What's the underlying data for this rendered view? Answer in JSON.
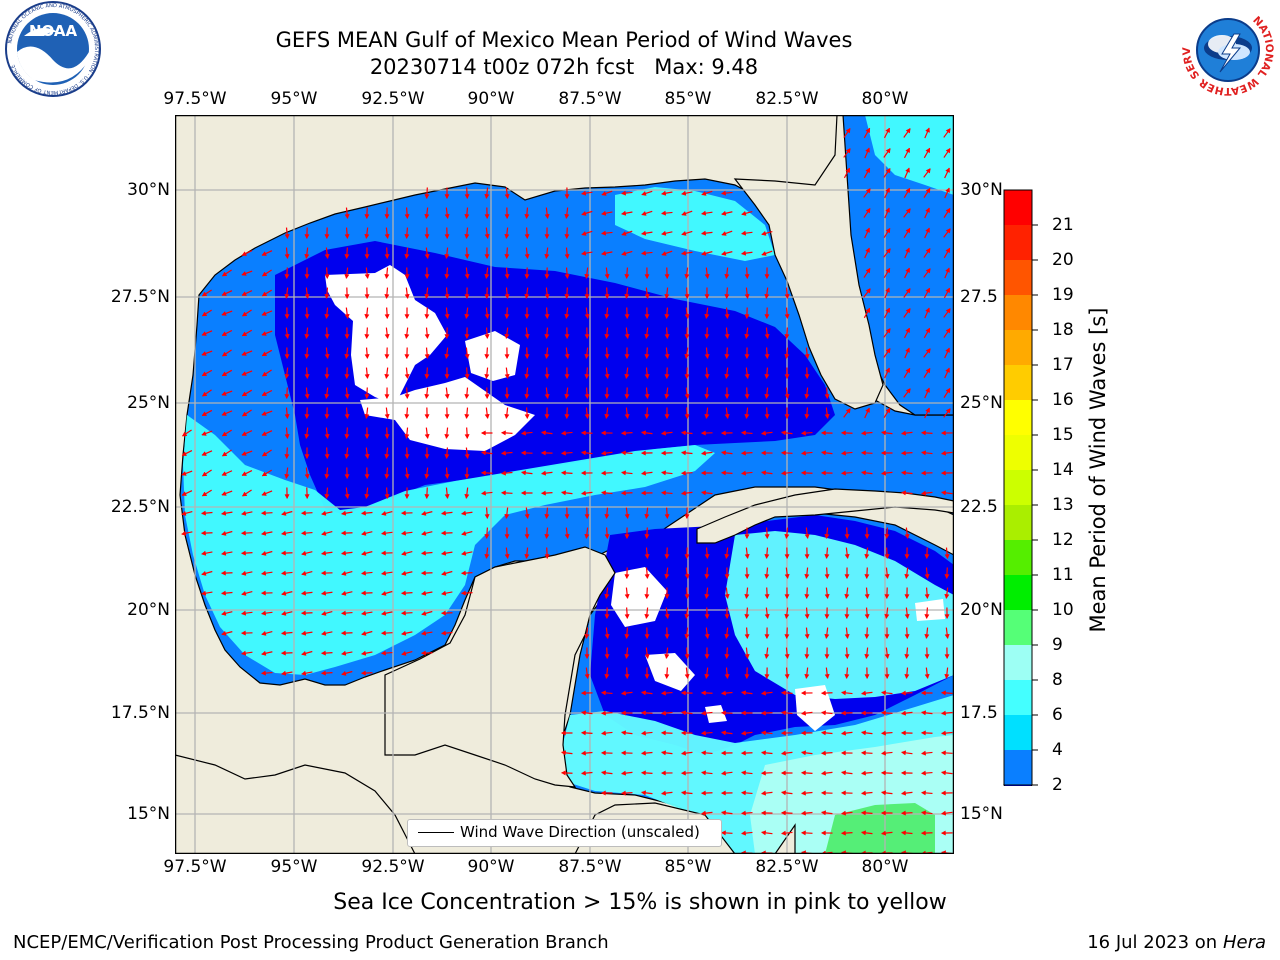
{
  "title": "GEFS MEAN Gulf of Mexico Mean Period of Wind Waves",
  "subtitle_line": "20230714 t00z 072h fcst   Max: 9.48",
  "lon_ticks": [
    "97.5°W",
    "95°W",
    "92.5°W",
    "90°W",
    "87.5°W",
    "85°W",
    "82.5°W",
    "80°W"
  ],
  "lat_ticks": [
    "30°N",
    "27.5°N",
    "25°N",
    "22.5°N",
    "20°N",
    "17.5°N",
    "15°N"
  ],
  "lat_ticks_right": [
    "30°N",
    "27.5",
    "25°N",
    "22.5",
    "20°N",
    "17.5",
    "15°N"
  ],
  "colorbar": {
    "label": "Mean Period of Wind Waves [s]",
    "ticks": [
      "2",
      "4",
      "6",
      "8",
      "9",
      "10",
      "11",
      "12",
      "13",
      "14",
      "15",
      "16",
      "17",
      "18",
      "19",
      "20",
      "21"
    ],
    "colors": [
      "#0a7fff",
      "#00e0ff",
      "#44ffff",
      "#9dfff4",
      "#55ff77",
      "#00ee00",
      "#55ee00",
      "#aaee00",
      "#ccff00",
      "#eeff00",
      "#ffff00",
      "#ffcc00",
      "#ffaa00",
      "#ff8800",
      "#ff5500",
      "#ff2200",
      "#ff0000"
    ]
  },
  "legend": "Wind Wave Direction (unscaled)",
  "sea_ice_note": "Sea Ice Concentration > 15% is shown in pink to yellow",
  "footer_left": "NCEP/EMC/Verification Post Processing Product Generation Branch",
  "footer_date": "16 Jul 2023 on ",
  "footer_host": "Hera",
  "logos": {
    "left": "NOAA",
    "left_ring": "NATIONAL OCEANIC AND ATMOSPHERIC ADMINISTRATION · U.S. DEPARTMENT OF COMMERCE",
    "right_ring": "NATIONAL WEATHER SERVICE"
  },
  "colors": {
    "land": "#efecdc",
    "blue_dark": "#0000ee",
    "blue_mid": "#0a7fff",
    "cyan": "#00ffff",
    "cyan_light": "#66ffff",
    "cyan_pale": "#aafff5",
    "green": "#55ee77",
    "arrow": "#ff0000",
    "grid": "#b4b4b4"
  }
}
